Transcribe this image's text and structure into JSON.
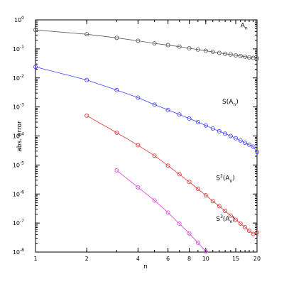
{
  "chart_data": {
    "type": "line",
    "xlabel": "n",
    "ylabel": "abs. error",
    "x_scale": "log",
    "y_scale": "log",
    "xlim": [
      1,
      20
    ],
    "ylim": [
      1e-08,
      1
    ],
    "x_tick_labels": [
      {
        "value": 1,
        "label": "1"
      },
      {
        "value": 2,
        "label": "2"
      },
      {
        "value": 4,
        "label": "4"
      },
      {
        "value": 6,
        "label": "6"
      },
      {
        "value": 8,
        "label": "8"
      },
      {
        "value": 10,
        "label": "10"
      },
      {
        "value": 15,
        "label": "15"
      },
      {
        "value": 20,
        "label": "20"
      }
    ],
    "y_tick_labels": [
      {
        "value": 1,
        "base": "10",
        "exp": "0"
      },
      {
        "value": 0.1,
        "base": "10",
        "exp": "-1"
      },
      {
        "value": 0.01,
        "base": "10",
        "exp": "-2"
      },
      {
        "value": 0.001,
        "base": "10",
        "exp": "-3"
      },
      {
        "value": 0.0001,
        "base": "10",
        "exp": "-4"
      },
      {
        "value": 1e-05,
        "base": "10",
        "exp": "-5"
      },
      {
        "value": 1e-06,
        "base": "10",
        "exp": "-6"
      },
      {
        "value": 1e-07,
        "base": "10",
        "exp": "-7"
      },
      {
        "value": 1e-08,
        "base": "10",
        "exp": "-8"
      }
    ],
    "grid": false,
    "series": [
      {
        "label": {
          "text": "A",
          "sup": "",
          "open": "",
          "sub": "n",
          "close": ""
        },
        "label_anchor": {
          "x": 16,
          "y": 0.55
        },
        "color": "#555555",
        "marker": "circle",
        "x": [
          1,
          2,
          3,
          4,
          5,
          6,
          7,
          8,
          9,
          10,
          11,
          12,
          13,
          14,
          15,
          16,
          17,
          18,
          19,
          20
        ],
        "y": [
          0.45,
          0.32,
          0.24,
          0.19,
          0.155,
          0.135,
          0.12,
          0.105,
          0.095,
          0.086,
          0.079,
          0.073,
          0.068,
          0.064,
          0.06,
          0.057,
          0.054,
          0.051,
          0.049,
          0.047
        ]
      },
      {
        "label": {
          "text": "S",
          "sup": "",
          "open": "(A",
          "sub": "n",
          "close": ")"
        },
        "label_anchor": {
          "x": 12.5,
          "y": 0.0013
        },
        "color": "#4040ff",
        "marker": "circle",
        "x": [
          1,
          2,
          3,
          4,
          5,
          6,
          7,
          8,
          9,
          10,
          11,
          12,
          13,
          14,
          15,
          16,
          17,
          18,
          19,
          20
        ],
        "y": [
          0.024,
          0.0085,
          0.0038,
          0.0021,
          0.0012,
          0.00079,
          0.00055,
          0.0004,
          0.0003,
          0.00023,
          0.00018,
          0.000145,
          0.00012,
          0.0001,
          8.3e-05,
          7e-05,
          5.8e-05,
          5e-05,
          4.3e-05,
          2.8e-05
        ]
      },
      {
        "label": {
          "text": "S",
          "sup": "2",
          "open": "(A",
          "sub": "n",
          "close": ")"
        },
        "label_anchor": {
          "x": 11.5,
          "y": 3e-06
        },
        "color": "#e03030",
        "marker": "circle",
        "x": [
          2,
          3,
          4,
          5,
          6,
          7,
          8,
          9,
          10,
          11,
          12,
          13,
          14,
          15,
          16,
          17,
          18,
          19,
          20
        ],
        "y": [
          0.0005,
          0.00013,
          4.8e-05,
          2.1e-05,
          9.5e-06,
          4.8e-06,
          2.6e-06,
          1.5e-06,
          9e-07,
          5.7e-07,
          3.8e-07,
          2.6e-07,
          1.8e-07,
          1.3e-07,
          9.6e-08,
          7.2e-08,
          5.4e-08,
          4.2e-08,
          4.7e-08
        ]
      },
      {
        "label": {
          "text": "S",
          "sup": "3",
          "open": "(A",
          "sub": "n",
          "close": ")"
        },
        "label_anchor": {
          "x": 11.5,
          "y": 1.2e-07
        },
        "color": "#e040e0",
        "marker": "circle",
        "x": [
          3,
          4,
          5,
          6,
          7,
          8,
          9,
          10
        ],
        "y": [
          6.5e-06,
          1.7e-06,
          6e-07,
          2.3e-07,
          9.5e-08,
          4.4e-08,
          2.1e-08,
          1.05e-08
        ]
      }
    ]
  }
}
